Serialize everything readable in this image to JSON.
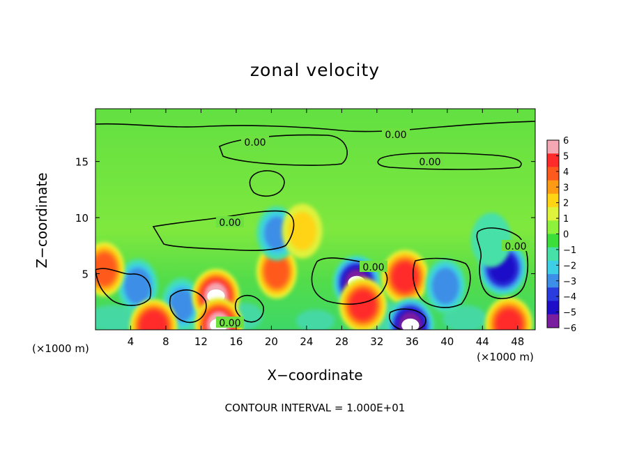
{
  "chart_data": {
    "type": "heatmap",
    "title": "zonal velocity",
    "xlabel": "X−coordinate",
    "ylabel": "Z−coordinate",
    "x_multiplier": "(×1000 m)",
    "y_multiplier": "(×1000 m)",
    "x_ticks": [
      4,
      8,
      12,
      16,
      20,
      24,
      28,
      32,
      36,
      40,
      44,
      48
    ],
    "y_ticks": [
      5,
      10,
      15
    ],
    "xlim": [
      0,
      50
    ],
    "ylim": [
      0,
      19.7
    ],
    "colorbar": {
      "ticks": [
        "6",
        "5",
        "4",
        "3",
        "2",
        "1",
        "0",
        "−1",
        "−2",
        "−3",
        "−4",
        "−5",
        "−6"
      ],
      "range": [
        -6,
        6
      ],
      "colors": [
        "#f4a8b4",
        "#ff2a2a",
        "#ff5a1e",
        "#ff9a14",
        "#ffd414",
        "#dff23c",
        "#8ef23c",
        "#3cde3c",
        "#46e0a8",
        "#3ccfe6",
        "#3c8ee6",
        "#2a3cde",
        "#1e0ec8",
        "#7a1ea0"
      ]
    },
    "contour_label": "0.00",
    "contour_interval_text": "CONTOUR INTERVAL = 1.000E+01",
    "features": [
      {
        "x": 4.8,
        "z": 3.9,
        "value": -3.5
      },
      {
        "x": 9.8,
        "z": 2.2,
        "value": -3.0
      },
      {
        "x": 13.7,
        "z": 3.0,
        "value": 6.0
      },
      {
        "x": 14.0,
        "z": 0.4,
        "value": 6.0
      },
      {
        "x": 6.6,
        "z": 0.3,
        "value": 5.5
      },
      {
        "x": 20.6,
        "z": 5.2,
        "value": 4.5
      },
      {
        "x": 20.6,
        "z": 8.6,
        "value": -3.0
      },
      {
        "x": 29.7,
        "z": 4.2,
        "value": -6.0
      },
      {
        "x": 30.4,
        "z": 2.2,
        "value": 5.0
      },
      {
        "x": 35.2,
        "z": 4.7,
        "value": 5.0
      },
      {
        "x": 35.8,
        "z": 0.4,
        "value": -6.0
      },
      {
        "x": 39.8,
        "z": 3.9,
        "value": -3.5
      },
      {
        "x": 46.3,
        "z": 5.5,
        "value": -5.5
      },
      {
        "x": 47.0,
        "z": 0.5,
        "value": 5.0
      },
      {
        "x": 1.0,
        "z": 5.4,
        "value": 4.5
      },
      {
        "x": 23.5,
        "z": 8.8,
        "value": 2.0
      },
      {
        "x": 45.0,
        "z": 8.0,
        "value": -1.5
      }
    ]
  }
}
